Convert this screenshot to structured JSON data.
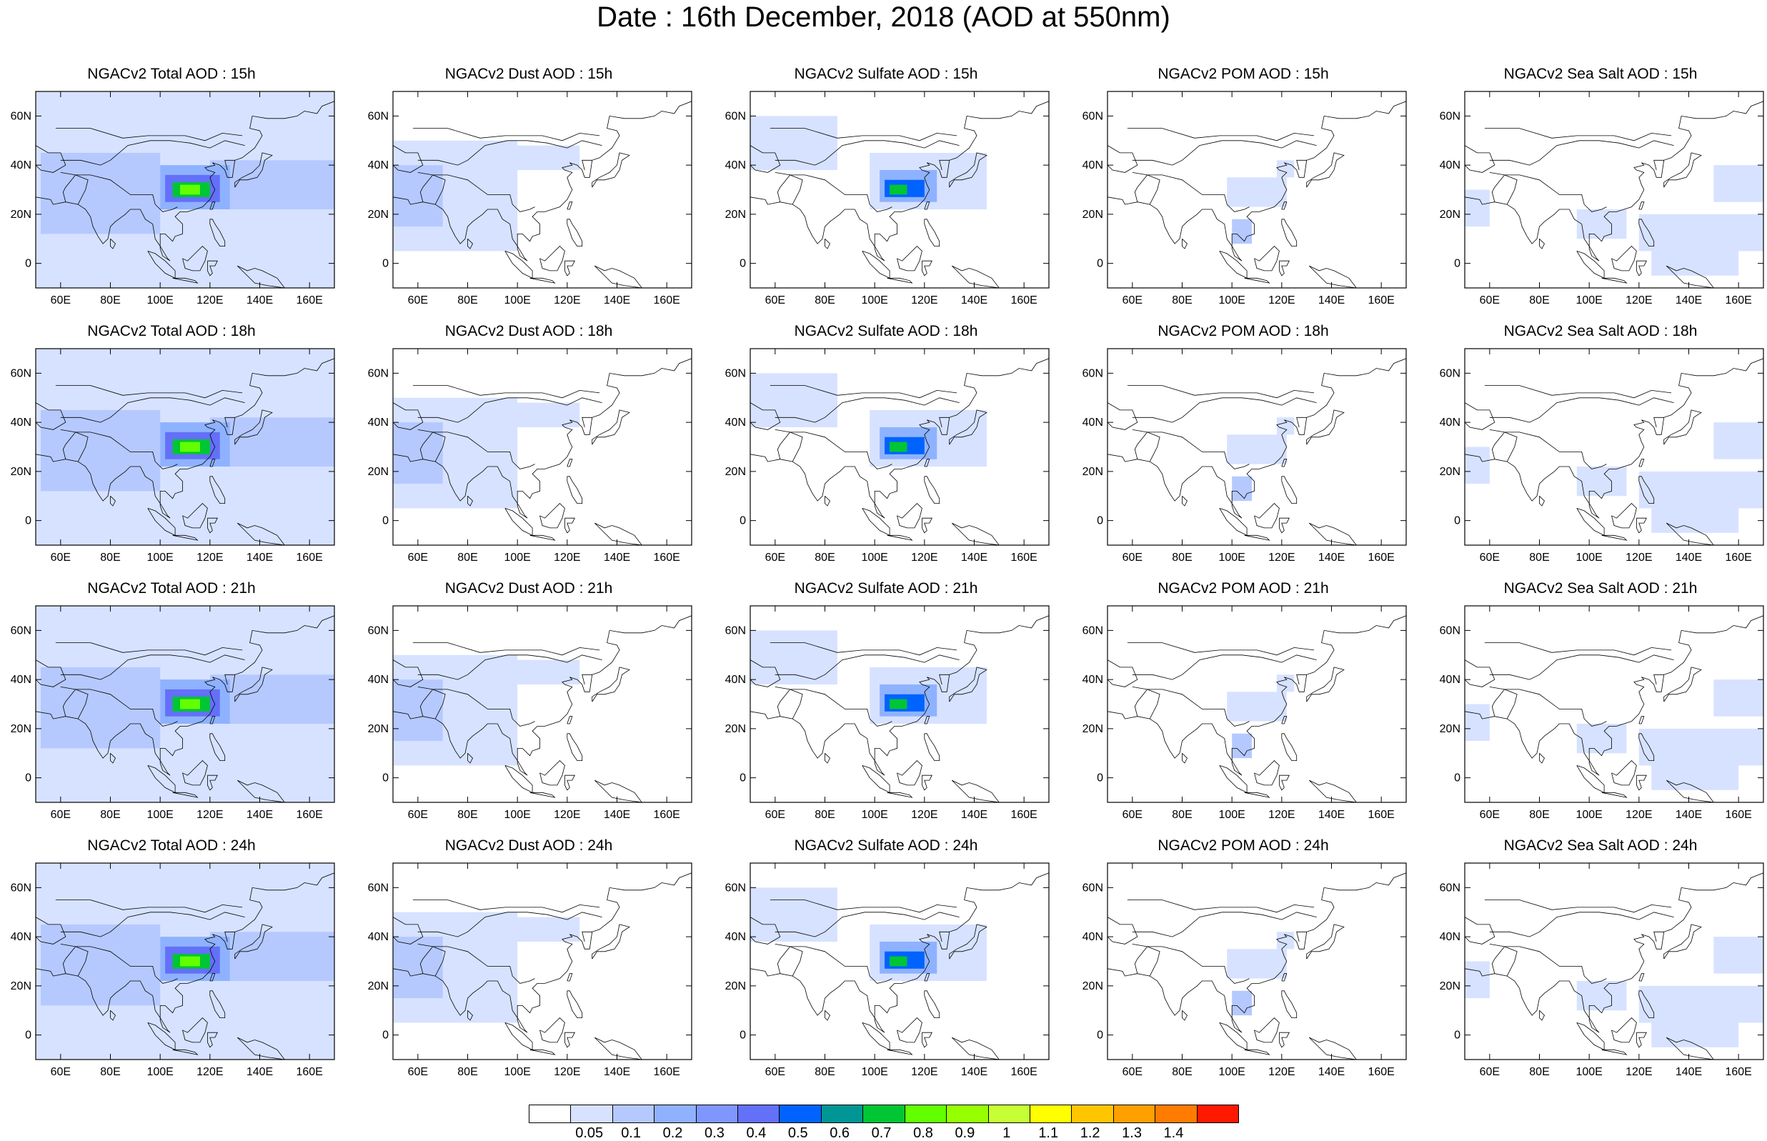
{
  "title": "Date : 16th December, 2018 (AOD at 550nm)",
  "map_extent": {
    "lon": [
      50,
      170
    ],
    "lat": [
      -10,
      70
    ]
  },
  "lon_ticks": [
    60,
    80,
    100,
    120,
    140,
    160
  ],
  "lon_tick_labels": [
    "60E",
    "80E",
    "100E",
    "120E",
    "140E",
    "160E"
  ],
  "lat_ticks": [
    60,
    40,
    20,
    0
  ],
  "lat_tick_labels": [
    "60N",
    "40N",
    "20N",
    "0"
  ],
  "colorbar": {
    "colors": [
      "#ffffff",
      "#d6e2ff",
      "#b5c9ff",
      "#8eb2ff",
      "#7f96ff",
      "#6370f8",
      "#0063ff",
      "#009696",
      "#00c633",
      "#63ff00",
      "#96ff00",
      "#c6ff33",
      "#ffff00",
      "#ffc600",
      "#ffa000",
      "#ff7c00",
      "#ff1900"
    ],
    "labels": [
      "0.05",
      "0.1",
      "0.2",
      "0.3",
      "0.4",
      "0.5",
      "0.6",
      "0.7",
      "0.8",
      "0.9",
      "1",
      "1.1",
      "1.2",
      "1.3",
      "1.4"
    ]
  },
  "panels": [
    {
      "title": "NGACv2 Total AOD : 15h",
      "species": "total"
    },
    {
      "title": "NGACv2 Dust AOD : 15h",
      "species": "dust"
    },
    {
      "title": "NGACv2 Sulfate AOD : 15h",
      "species": "sulfate"
    },
    {
      "title": "NGACv2 POM AOD : 15h",
      "species": "pom"
    },
    {
      "title": "NGACv2 Sea Salt AOD : 15h",
      "species": "seasalt"
    },
    {
      "title": "NGACv2 Total AOD : 18h",
      "species": "total"
    },
    {
      "title": "NGACv2 Dust AOD : 18h",
      "species": "dust"
    },
    {
      "title": "NGACv2 Sulfate AOD : 18h",
      "species": "sulfate"
    },
    {
      "title": "NGACv2 POM AOD : 18h",
      "species": "pom"
    },
    {
      "title": "NGACv2 Sea Salt AOD : 18h",
      "species": "seasalt"
    },
    {
      "title": "NGACv2 Total AOD : 21h",
      "species": "total"
    },
    {
      "title": "NGACv2 Dust AOD : 21h",
      "species": "dust"
    },
    {
      "title": "NGACv2 Sulfate AOD : 21h",
      "species": "sulfate"
    },
    {
      "title": "NGACv2 POM AOD : 21h",
      "species": "pom"
    },
    {
      "title": "NGACv2 Sea Salt AOD : 21h",
      "species": "seasalt"
    },
    {
      "title": "NGACv2 Total AOD : 24h",
      "species": "total"
    },
    {
      "title": "NGACv2 Dust AOD : 24h",
      "species": "dust"
    },
    {
      "title": "NGACv2 Sulfate AOD : 24h",
      "species": "sulfate"
    },
    {
      "title": "NGACv2 POM AOD : 24h",
      "species": "pom"
    },
    {
      "title": "NGACv2 Sea Salt  AOD : 24h",
      "species": "seasalt"
    }
  ],
  "aod_fields": {
    "total": [
      {
        "lon": [
          50,
          170
        ],
        "lat": [
          -10,
          70
        ],
        "level": 1
      },
      {
        "lon": [
          52,
          100
        ],
        "lat": [
          12,
          45
        ],
        "level": 2
      },
      {
        "lon": [
          120,
          170
        ],
        "lat": [
          22,
          42
        ],
        "level": 2
      },
      {
        "lon": [
          100,
          128
        ],
        "lat": [
          22,
          40
        ],
        "level": 3
      },
      {
        "lon": [
          102,
          124
        ],
        "lat": [
          25,
          36
        ],
        "level": 5
      },
      {
        "lon": [
          105,
          120
        ],
        "lat": [
          27,
          33
        ],
        "level": 8
      },
      {
        "lon": [
          108,
          116
        ],
        "lat": [
          28,
          32
        ],
        "level": 9
      }
    ],
    "dust": [
      {
        "lon": [
          50,
          100
        ],
        "lat": [
          5,
          50
        ],
        "level": 1
      },
      {
        "lon": [
          60,
          125
        ],
        "lat": [
          38,
          48
        ],
        "level": 1
      },
      {
        "lon": [
          50,
          70
        ],
        "lat": [
          15,
          40
        ],
        "level": 2
      }
    ],
    "sulfate": [
      {
        "lon": [
          50,
          85
        ],
        "lat": [
          38,
          60
        ],
        "level": 1
      },
      {
        "lon": [
          98,
          145
        ],
        "lat": [
          22,
          45
        ],
        "level": 1
      },
      {
        "lon": [
          102,
          125
        ],
        "lat": [
          25,
          38
        ],
        "level": 3
      },
      {
        "lon": [
          104,
          120
        ],
        "lat": [
          27,
          34
        ],
        "level": 6
      },
      {
        "lon": [
          106,
          113
        ],
        "lat": [
          28,
          32
        ],
        "level": 8
      }
    ],
    "pom": [
      {
        "lon": [
          98,
          122
        ],
        "lat": [
          23,
          35
        ],
        "level": 1
      },
      {
        "lon": [
          100,
          108
        ],
        "lat": [
          8,
          18
        ],
        "level": 2
      },
      {
        "lon": [
          118,
          125
        ],
        "lat": [
          35,
          42
        ],
        "level": 1
      }
    ],
    "seasalt": [
      {
        "lon": [
          50,
          60
        ],
        "lat": [
          15,
          30
        ],
        "level": 1
      },
      {
        "lon": [
          120,
          170
        ],
        "lat": [
          5,
          20
        ],
        "level": 1
      },
      {
        "lon": [
          125,
          160
        ],
        "lat": [
          -5,
          10
        ],
        "level": 1
      },
      {
        "lon": [
          95,
          115
        ],
        "lat": [
          10,
          22
        ],
        "level": 1
      },
      {
        "lon": [
          150,
          170
        ],
        "lat": [
          25,
          40
        ],
        "level": 1
      }
    ]
  }
}
